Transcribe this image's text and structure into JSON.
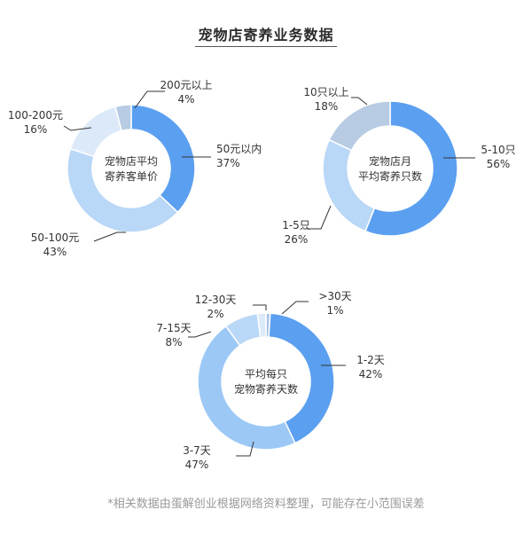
{
  "title": "宠物店寄养业务数据",
  "footnote": "*相关数据由蛋解创业根据网络资料整理，可能存在小范围误差",
  "chart_data": [
    {
      "type": "pie",
      "center_label": [
        "宠物店平均",
        "寄养客单价"
      ],
      "slices": [
        {
          "label": "50元以内",
          "value": 37,
          "display": "37%",
          "color": "#5b9ff0"
        },
        {
          "label": "50-100元",
          "value": 43,
          "display": "43%",
          "color": "#b9d7f7"
        },
        {
          "label": "100-200元",
          "value": 16,
          "display": "16%",
          "color": "#dce9f8"
        },
        {
          "label": "200元以上",
          "value": 4,
          "display": "4%",
          "color": "#b7cbe3"
        }
      ]
    },
    {
      "type": "pie",
      "center_label": [
        "宠物店月",
        "平均寄养只数"
      ],
      "slices": [
        {
          "label": "5-10只",
          "value": 56,
          "display": "56%",
          "color": "#5b9ff0"
        },
        {
          "label": "1-5只",
          "value": 26,
          "display": "26%",
          "color": "#b9d7f7"
        },
        {
          "label": "10只以上",
          "value": 18,
          "display": "18%",
          "color": "#b7cbe3"
        }
      ]
    },
    {
      "type": "pie",
      "center_label": [
        "平均每只",
        "宠物寄养天数"
      ],
      "slices": [
        {
          "label": ">30天",
          "value": 1,
          "display": "1%",
          "color": "#a9c3e6"
        },
        {
          "label": "1-2天",
          "value": 42,
          "display": "42%",
          "color": "#5b9ff0"
        },
        {
          "label": "3-7天",
          "value": 47,
          "display": "47%",
          "color": "#9cc8f6"
        },
        {
          "label": "7-15天",
          "value": 8,
          "display": "8%",
          "color": "#b9d7f7"
        },
        {
          "label": "12-30天",
          "value": 2,
          "display": "2%",
          "color": "#dce9f8"
        }
      ]
    }
  ]
}
